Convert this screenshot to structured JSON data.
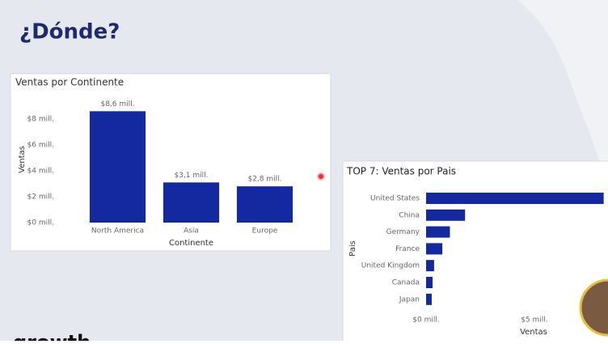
{
  "title": "¿Dónde?",
  "brand": "growth",
  "chart_data": [
    {
      "type": "bar",
      "title": "Ventas por Continente",
      "x_label": "Continente",
      "y_label": "Ventas",
      "categories": [
        "North America",
        "Asia",
        "Europe"
      ],
      "values": [
        8.6,
        3.1,
        2.8
      ],
      "value_labels": [
        "$8,6 mill.",
        "$3,1 mill.",
        "$2,8 mill."
      ],
      "color": "#1428a0",
      "ylim": [
        0,
        9
      ],
      "yticks": [
        {
          "value": 0,
          "label": "$0 mill."
        },
        {
          "value": 2,
          "label": "$2 mill."
        },
        {
          "value": 4,
          "label": "$4 mill."
        },
        {
          "value": 6,
          "label": "$6 mill."
        },
        {
          "value": 8,
          "label": "$8 mill."
        }
      ]
    },
    {
      "type": "barh",
      "title": "TOP 7: Ventas por Pais",
      "x_label": "Ventas",
      "y_label": "Pais",
      "categories": [
        "United States",
        "China",
        "Germany",
        "France",
        "United Kingdom",
        "Canada",
        "Japan"
      ],
      "values": [
        8.2,
        1.8,
        1.1,
        0.75,
        0.37,
        0.3,
        0.26
      ],
      "color": "#1428a0",
      "xlim": [
        0,
        8.4
      ],
      "xticks": [
        {
          "value": 0,
          "label": "$0 mill."
        },
        {
          "value": 5,
          "label": "$5 mill."
        }
      ]
    }
  ]
}
